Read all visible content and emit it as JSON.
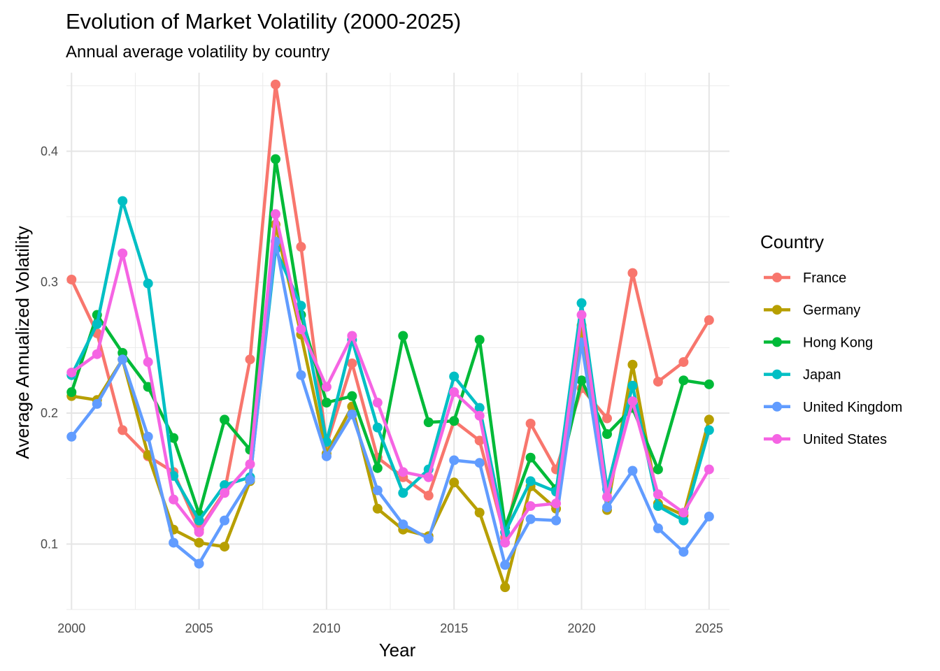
{
  "chart_data": {
    "type": "line",
    "title": "Evolution of Market Volatility (2000-2025)",
    "subtitle": "Annual average volatility by country",
    "xlabel": "Year",
    "ylabel": "Average Annualized Volatility",
    "xlim": [
      1999.8,
      2025.8
    ],
    "ylim": [
      0.05,
      0.46
    ],
    "x_ticks": [
      2000,
      2005,
      2010,
      2015,
      2020,
      2025
    ],
    "y_ticks": [
      0.1,
      0.2,
      0.3,
      0.4
    ],
    "x_tick_labels": [
      "2000",
      "2005",
      "2010",
      "2015",
      "2020",
      "2025"
    ],
    "y_tick_labels": [
      "0.1",
      "0.2",
      "0.3",
      "0.4"
    ],
    "grid": true,
    "legend": {
      "title": "Country",
      "position": "right"
    },
    "x": [
      2000,
      2001,
      2002,
      2003,
      2004,
      2005,
      2006,
      2007,
      2008,
      2009,
      2010,
      2011,
      2012,
      2013,
      2014,
      2015,
      2016,
      2017,
      2018,
      2019,
      2020,
      2021,
      2022,
      2023,
      2024,
      2025
    ],
    "series": [
      {
        "name": "France",
        "color": "#F8766D",
        "values": [
          0.302,
          0.261,
          0.187,
          0.167,
          0.155,
          0.111,
          0.14,
          0.241,
          0.451,
          0.327,
          0.176,
          0.238,
          0.166,
          0.151,
          0.137,
          0.194,
          0.179,
          0.105,
          0.192,
          0.157,
          0.219,
          0.196,
          0.307,
          0.224,
          0.239,
          0.271
        ]
      },
      {
        "name": "Germany",
        "color": "#B79F00",
        "values": [
          0.213,
          0.21,
          0.241,
          0.168,
          0.111,
          0.101,
          0.098,
          0.148,
          0.344,
          0.26,
          0.169,
          0.205,
          0.127,
          0.111,
          0.106,
          0.147,
          0.124,
          0.067,
          0.144,
          0.127,
          0.267,
          0.126,
          0.237,
          0.131,
          0.122,
          0.195
        ]
      },
      {
        "name": "Hong Kong",
        "color": "#00BA38",
        "values": [
          0.216,
          0.275,
          0.246,
          0.22,
          0.181,
          0.123,
          0.195,
          0.172,
          0.394,
          0.275,
          0.208,
          0.213,
          0.158,
          0.259,
          0.193,
          0.194,
          0.256,
          0.113,
          0.166,
          0.142,
          0.225,
          0.184,
          0.204,
          0.157,
          0.225,
          0.222
        ]
      },
      {
        "name": "Japan",
        "color": "#00BFC4",
        "values": [
          0.229,
          0.268,
          0.362,
          0.299,
          0.152,
          0.118,
          0.145,
          0.151,
          0.325,
          0.282,
          0.178,
          0.256,
          0.189,
          0.139,
          0.157,
          0.228,
          0.204,
          0.109,
          0.148,
          0.14,
          0.284,
          0.142,
          0.221,
          0.129,
          0.118,
          0.187
        ]
      },
      {
        "name": "United Kingdom",
        "color": "#619CFF",
        "values": [
          0.182,
          0.207,
          0.241,
          0.182,
          0.101,
          0.085,
          0.118,
          0.149,
          0.331,
          0.229,
          0.167,
          0.199,
          0.141,
          0.115,
          0.104,
          0.164,
          0.162,
          0.084,
          0.119,
          0.118,
          0.254,
          0.128,
          0.156,
          0.112,
          0.094,
          0.121
        ]
      },
      {
        "name": "United States",
        "color": "#F564E3",
        "values": [
          0.231,
          0.245,
          0.322,
          0.239,
          0.134,
          0.109,
          0.139,
          0.161,
          0.352,
          0.264,
          0.22,
          0.259,
          0.208,
          0.155,
          0.151,
          0.216,
          0.198,
          0.101,
          0.129,
          0.131,
          0.275,
          0.136,
          0.209,
          0.138,
          0.124,
          0.157
        ]
      }
    ]
  }
}
